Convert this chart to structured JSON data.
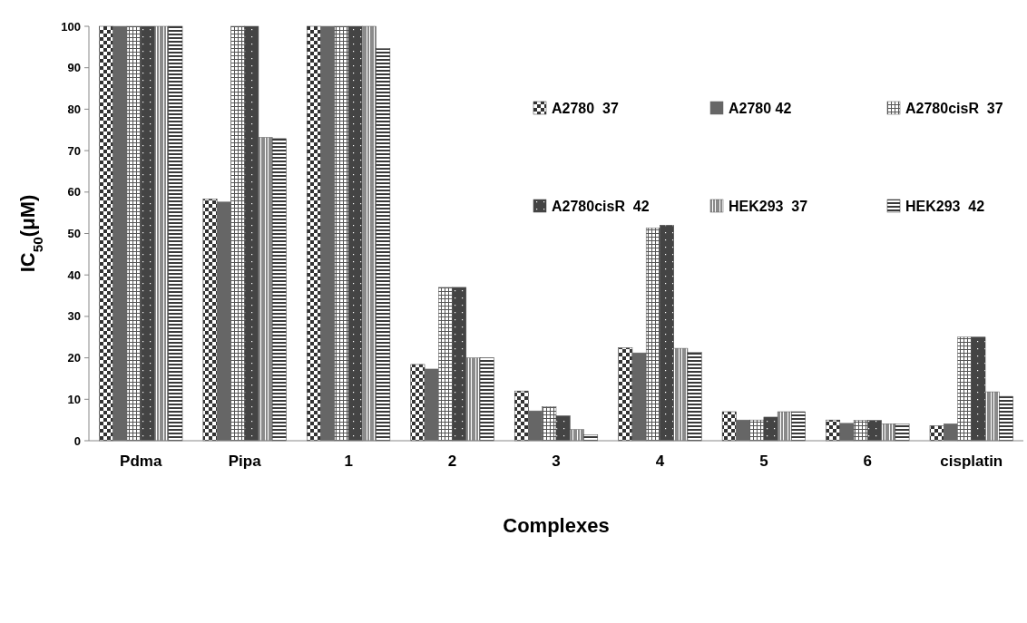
{
  "chart_data": {
    "type": "bar",
    "xlabel": "Complexes",
    "ylabel": "IC$_{50}$(μM)",
    "categories": [
      "Pdma",
      "Pipa",
      "1",
      "2",
      "3",
      "4",
      "5",
      "6",
      "cisplatin"
    ],
    "ylim": [
      0,
      100
    ],
    "yticks": [
      0,
      10,
      20,
      30,
      40,
      50,
      60,
      70,
      80,
      90,
      100
    ],
    "legend": "top right",
    "series": [
      {
        "name": "A2780  37",
        "color": "#333333",
        "values": [
          100,
          58.3,
          100,
          18.4,
          12,
          22.4,
          7,
          5,
          3.6
        ]
      },
      {
        "name": "A2780 42",
        "color": "#666666",
        "values": [
          100,
          57.6,
          100,
          17.3,
          7.2,
          21.2,
          5,
          4.2,
          4.1
        ]
      },
      {
        "name": "A2780cisR  37",
        "color": "#555555",
        "values": [
          100,
          100,
          100,
          37,
          8.2,
          51.3,
          5,
          4.9,
          25
        ]
      },
      {
        "name": "A2780cisR  42",
        "color": "#444444",
        "values": [
          100,
          100,
          100,
          37,
          6,
          52,
          5.7,
          4.9,
          25
        ]
      },
      {
        "name": "HEK293  37",
        "color": "#5a5a5a",
        "values": [
          100,
          73.2,
          100,
          20,
          2.7,
          22.3,
          7,
          4.1,
          11.8
        ]
      },
      {
        "name": "HEK293  42",
        "color": "#3a3a3a",
        "values": [
          100,
          72.9,
          94.6,
          20,
          1.4,
          21.3,
          7,
          4,
          10.7
        ]
      }
    ]
  }
}
